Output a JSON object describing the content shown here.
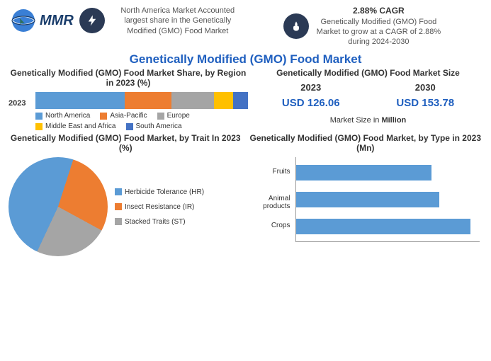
{
  "header": {
    "logo_text": "MMR",
    "block1_text": "North America Market Accounted largest share in the Genetically Modified (GMO) Food Market",
    "cagr_title": "2.88% CAGR",
    "block2_text": "Genetically Modified (GMO) Food Market to grow at a CAGR of 2.88% during 2024-2030"
  },
  "main_title": "Genetically Modified (GMO) Food Market",
  "title_color": "#1f5fbf",
  "share_chart": {
    "title": "Genetically Modified (GMO) Food Market Share, by Region in 2023 (%)",
    "row_label": "2023",
    "segments": [
      {
        "label": "North America",
        "value": 42,
        "color": "#5b9bd5"
      },
      {
        "label": "Asia-Pacific",
        "value": 22,
        "color": "#ed7d31"
      },
      {
        "label": "Europe",
        "value": 20,
        "color": "#a5a5a5"
      },
      {
        "label": "Middle East and Africa",
        "value": 9,
        "color": "#ffc000"
      },
      {
        "label": "South America",
        "value": 7,
        "color": "#4472c4"
      }
    ]
  },
  "size_box": {
    "title": "Genetically Modified (GMO) Food Market Size",
    "year1": "2023",
    "year2": "2030",
    "val1": "USD 126.06",
    "val2": "USD 153.78",
    "val_color": "#1f5fbf",
    "note_pre": "Market Size in ",
    "note_bold": "Million"
  },
  "pie_chart": {
    "title": "Genetically Modified (GMO) Food Market, by Trait In 2023 (%)",
    "slices": [
      {
        "label": "Herbicide Tolerance (HR)",
        "value": 48,
        "color": "#5b9bd5"
      },
      {
        "label": "Insect Resistance (IR)",
        "value": 28,
        "color": "#ed7d31"
      },
      {
        "label": "Stacked Traits (ST)",
        "value": 24,
        "color": "#a5a5a5"
      }
    ]
  },
  "hbar_chart": {
    "title": "Genetically Modified (GMO) Food Market, by Type in 2023 (Mn)",
    "bar_color": "#5b9bd5",
    "max": 100,
    "bars": [
      {
        "label": "Fruits",
        "value": 74
      },
      {
        "label": "Animal products",
        "value": 78
      },
      {
        "label": "Crops",
        "value": 95
      }
    ]
  },
  "icon_bg": "#2b3a55"
}
